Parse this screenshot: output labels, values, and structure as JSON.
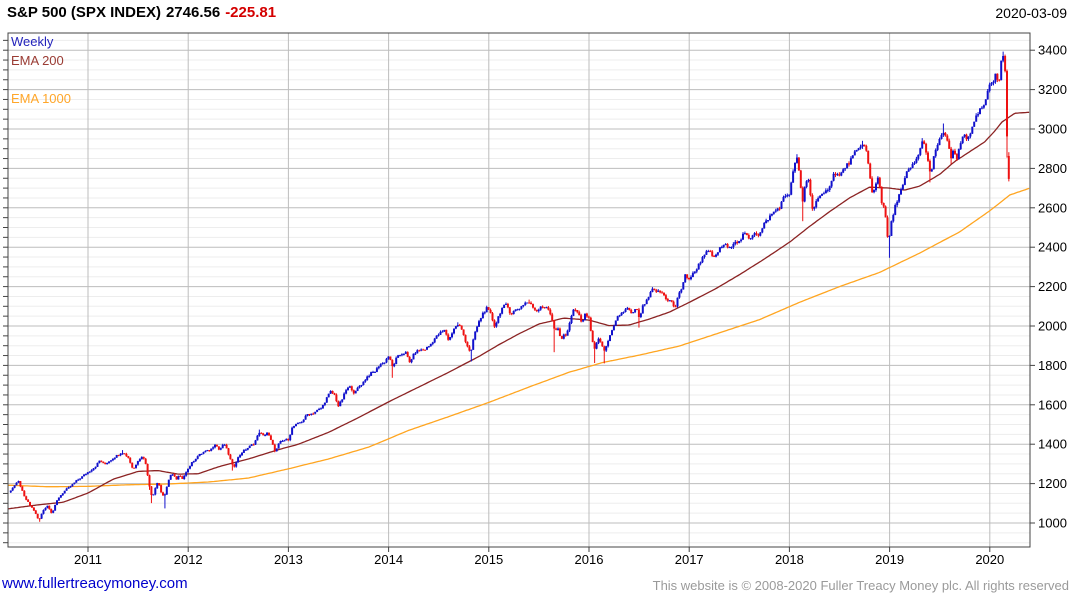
{
  "header": {
    "instrument": "S&P 500 (SPX INDEX)",
    "price": "2746.56",
    "change": "-225.81",
    "change_color": "#d40000",
    "date": "2020-03-09"
  },
  "legend": [
    {
      "label": "Weekly",
      "color": "#2323bb"
    },
    {
      "label": "EMA 200",
      "color": "#9a3b33"
    },
    {
      "label": "EMA 1000",
      "color": "#ffa629"
    }
  ],
  "footer": {
    "site": "www.fullertreacymoney.com",
    "site_color": "#0000cc",
    "copyright": "This website is © 2008-2020 Fuller Treacy Money plc. All rights reserved",
    "copyright_color": "#9a9a9a"
  },
  "chart_data": {
    "type": "candlestick",
    "timeframe": "Weekly",
    "instrument": "S&P 500 (SPX INDEX)",
    "last_price": 2746.56,
    "change": -225.81,
    "as_of": "2020-03-09",
    "x_ticks": [
      2011,
      2012,
      2013,
      2014,
      2015,
      2016,
      2017,
      2018,
      2019,
      2020
    ],
    "y_ticks": [
      1000,
      1200,
      1400,
      1600,
      1800,
      2000,
      2200,
      2400,
      2600,
      2800,
      3000,
      3200,
      3400
    ],
    "minor_step": 50,
    "xlim": [
      2010.2,
      2020.4
    ],
    "ylim": [
      878,
      3487
    ],
    "grid": true,
    "legend_position": "top-left",
    "colors": {
      "up": "#1010cc",
      "down": "#ee1111",
      "ema200": "#8b2323",
      "ema1000": "#ffa520",
      "grid_major": "#bdbdbd",
      "grid_minor": "#ededed",
      "frame": "#444444",
      "label": "#000000"
    },
    "price_path": [
      [
        2010.2,
        1150
      ],
      [
        2010.26,
        1187
      ],
      [
        2010.31,
        1212
      ],
      [
        2010.36,
        1136
      ],
      [
        2010.42,
        1090
      ],
      [
        2010.46,
        1065
      ],
      [
        2010.51,
        1011
      ],
      [
        2010.55,
        1065
      ],
      [
        2010.6,
        1090
      ],
      [
        2010.64,
        1047
      ],
      [
        2010.7,
        1125
      ],
      [
        2010.76,
        1160
      ],
      [
        2010.82,
        1183
      ],
      [
        2010.88,
        1212
      ],
      [
        2010.94,
        1235
      ],
      [
        2011.0,
        1258
      ],
      [
        2011.07,
        1285
      ],
      [
        2011.12,
        1320
      ],
      [
        2011.16,
        1296
      ],
      [
        2011.22,
        1318
      ],
      [
        2011.28,
        1340
      ],
      [
        2011.34,
        1360
      ],
      [
        2011.4,
        1335
      ],
      [
        2011.45,
        1270
      ],
      [
        2011.5,
        1320
      ],
      [
        2011.55,
        1340
      ],
      [
        2011.58,
        1290
      ],
      [
        2011.61,
        1199
      ],
      [
        2011.64,
        1123
      ],
      [
        2011.67,
        1178
      ],
      [
        2011.7,
        1216
      ],
      [
        2011.73,
        1155
      ],
      [
        2011.76,
        1131
      ],
      [
        2011.79,
        1190
      ],
      [
        2011.82,
        1238
      ],
      [
        2011.85,
        1253
      ],
      [
        2011.88,
        1216
      ],
      [
        2011.91,
        1244
      ],
      [
        2011.94,
        1219
      ],
      [
        2011.97,
        1255
      ],
      [
        2012.0,
        1277
      ],
      [
        2012.05,
        1315
      ],
      [
        2012.1,
        1342
      ],
      [
        2012.16,
        1361
      ],
      [
        2012.22,
        1370
      ],
      [
        2012.27,
        1403
      ],
      [
        2012.31,
        1370
      ],
      [
        2012.36,
        1403
      ],
      [
        2012.4,
        1353
      ],
      [
        2012.45,
        1278
      ],
      [
        2012.49,
        1325
      ],
      [
        2012.53,
        1356
      ],
      [
        2012.58,
        1376
      ],
      [
        2012.62,
        1391
      ],
      [
        2012.66,
        1406
      ],
      [
        2012.71,
        1461
      ],
      [
        2012.75,
        1441
      ],
      [
        2012.79,
        1460
      ],
      [
        2012.83,
        1414
      ],
      [
        2012.87,
        1360
      ],
      [
        2012.91,
        1409
      ],
      [
        2012.95,
        1418
      ],
      [
        2013.0,
        1426
      ],
      [
        2013.04,
        1486
      ],
      [
        2013.09,
        1503
      ],
      [
        2013.14,
        1518
      ],
      [
        2013.19,
        1552
      ],
      [
        2013.24,
        1556
      ],
      [
        2013.28,
        1569
      ],
      [
        2013.33,
        1583
      ],
      [
        2013.38,
        1633
      ],
      [
        2013.42,
        1667
      ],
      [
        2013.46,
        1650
      ],
      [
        2013.5,
        1592
      ],
      [
        2013.54,
        1632
      ],
      [
        2013.58,
        1680
      ],
      [
        2013.62,
        1692
      ],
      [
        2013.66,
        1656
      ],
      [
        2013.7,
        1692
      ],
      [
        2013.74,
        1710
      ],
      [
        2013.79,
        1745
      ],
      [
        2013.83,
        1762
      ],
      [
        2013.87,
        1771
      ],
      [
        2013.91,
        1805
      ],
      [
        2013.95,
        1812
      ],
      [
        2014.0,
        1848
      ],
      [
        2014.04,
        1790
      ],
      [
        2014.08,
        1839
      ],
      [
        2014.13,
        1859
      ],
      [
        2014.17,
        1865
      ],
      [
        2014.21,
        1815
      ],
      [
        2014.26,
        1864
      ],
      [
        2014.31,
        1878
      ],
      [
        2014.36,
        1881
      ],
      [
        2014.41,
        1901
      ],
      [
        2014.46,
        1936
      ],
      [
        2014.51,
        1963
      ],
      [
        2014.56,
        1978
      ],
      [
        2014.6,
        1925
      ],
      [
        2014.65,
        1987
      ],
      [
        2014.7,
        2011
      ],
      [
        2014.74,
        1968
      ],
      [
        2014.78,
        1906
      ],
      [
        2014.82,
        1862
      ],
      [
        2014.86,
        1965
      ],
      [
        2014.9,
        2018
      ],
      [
        2014.94,
        2064
      ],
      [
        2014.98,
        2089
      ],
      [
        2015.02,
        2058
      ],
      [
        2015.06,
        1995
      ],
      [
        2015.1,
        2055
      ],
      [
        2015.14,
        2097
      ],
      [
        2015.18,
        2108
      ],
      [
        2015.22,
        2060
      ],
      [
        2015.26,
        2080
      ],
      [
        2015.31,
        2092
      ],
      [
        2015.36,
        2118
      ],
      [
        2015.4,
        2120
      ],
      [
        2015.44,
        2095
      ],
      [
        2015.48,
        2077
      ],
      [
        2015.52,
        2102
      ],
      [
        2015.56,
        2095
      ],
      [
        2015.6,
        2080
      ],
      [
        2015.63,
        2040
      ],
      [
        2015.66,
        1971
      ],
      [
        2015.69,
        1989
      ],
      [
        2015.72,
        1921
      ],
      [
        2015.75,
        1958
      ],
      [
        2015.78,
        1951
      ],
      [
        2015.81,
        2033
      ],
      [
        2015.84,
        2075
      ],
      [
        2015.87,
        2089
      ],
      [
        2015.9,
        2052
      ],
      [
        2015.93,
        2012
      ],
      [
        2015.96,
        2060
      ],
      [
        2016.0,
        2044
      ],
      [
        2016.03,
        1922
      ],
      [
        2016.06,
        1880
      ],
      [
        2016.09,
        1940
      ],
      [
        2016.12,
        1918
      ],
      [
        2016.15,
        1865
      ],
      [
        2016.18,
        1918
      ],
      [
        2016.21,
        1948
      ],
      [
        2016.25,
        1999
      ],
      [
        2016.29,
        2050
      ],
      [
        2016.34,
        2072
      ],
      [
        2016.39,
        2091
      ],
      [
        2016.43,
        2052
      ],
      [
        2016.47,
        2099
      ],
      [
        2016.5,
        2037
      ],
      [
        2016.54,
        2103
      ],
      [
        2016.58,
        2129
      ],
      [
        2016.63,
        2184
      ],
      [
        2016.68,
        2175
      ],
      [
        2016.73,
        2169
      ],
      [
        2016.78,
        2133
      ],
      [
        2016.82,
        2126
      ],
      [
        2016.86,
        2085
      ],
      [
        2016.89,
        2164
      ],
      [
        2016.93,
        2192
      ],
      [
        2016.96,
        2258
      ],
      [
        2017.0,
        2239
      ],
      [
        2017.05,
        2271
      ],
      [
        2017.1,
        2316
      ],
      [
        2017.15,
        2367
      ],
      [
        2017.2,
        2378
      ],
      [
        2017.25,
        2344
      ],
      [
        2017.3,
        2389
      ],
      [
        2017.35,
        2416
      ],
      [
        2017.4,
        2391
      ],
      [
        2017.45,
        2432
      ],
      [
        2017.5,
        2425
      ],
      [
        2017.55,
        2472
      ],
      [
        2017.6,
        2441
      ],
      [
        2017.65,
        2477
      ],
      [
        2017.7,
        2461
      ],
      [
        2017.75,
        2519
      ],
      [
        2017.8,
        2553
      ],
      [
        2017.85,
        2581
      ],
      [
        2017.9,
        2602
      ],
      [
        2017.95,
        2658
      ],
      [
        2018.0,
        2673
      ],
      [
        2018.04,
        2786
      ],
      [
        2018.07,
        2872
      ],
      [
        2018.1,
        2762
      ],
      [
        2018.13,
        2620
      ],
      [
        2018.16,
        2732
      ],
      [
        2018.19,
        2747
      ],
      [
        2018.23,
        2588
      ],
      [
        2018.27,
        2640
      ],
      [
        2018.31,
        2656
      ],
      [
        2018.35,
        2670
      ],
      [
        2018.4,
        2713
      ],
      [
        2018.45,
        2780
      ],
      [
        2018.5,
        2760
      ],
      [
        2018.55,
        2802
      ],
      [
        2018.6,
        2833
      ],
      [
        2018.65,
        2875
      ],
      [
        2018.7,
        2902
      ],
      [
        2018.73,
        2930
      ],
      [
        2018.77,
        2886
      ],
      [
        2018.8,
        2768
      ],
      [
        2018.83,
        2659
      ],
      [
        2018.86,
        2723
      ],
      [
        2018.89,
        2760
      ],
      [
        2018.92,
        2633
      ],
      [
        2018.95,
        2600
      ],
      [
        2018.97,
        2486
      ],
      [
        2018.99,
        2417
      ],
      [
        2019.01,
        2507
      ],
      [
        2019.05,
        2596
      ],
      [
        2019.09,
        2665
      ],
      [
        2019.13,
        2707
      ],
      [
        2019.17,
        2776
      ],
      [
        2019.21,
        2803
      ],
      [
        2019.26,
        2834
      ],
      [
        2019.3,
        2893
      ],
      [
        2019.33,
        2940
      ],
      [
        2019.37,
        2881
      ],
      [
        2019.41,
        2752
      ],
      [
        2019.45,
        2887
      ],
      [
        2019.5,
        2942
      ],
      [
        2019.54,
        2990
      ],
      [
        2019.58,
        2932
      ],
      [
        2019.61,
        2847
      ],
      [
        2019.64,
        2889
      ],
      [
        2019.67,
        2847
      ],
      [
        2019.71,
        2926
      ],
      [
        2019.74,
        2979
      ],
      [
        2019.77,
        2952
      ],
      [
        2019.81,
        2986
      ],
      [
        2019.84,
        3023
      ],
      [
        2019.87,
        3067
      ],
      [
        2019.9,
        3094
      ],
      [
        2019.93,
        3110
      ],
      [
        2019.96,
        3141
      ],
      [
        2020.0,
        3231
      ],
      [
        2020.03,
        3235
      ],
      [
        2020.06,
        3295
      ],
      [
        2020.09,
        3226
      ],
      [
        2020.11,
        3328
      ],
      [
        2020.13,
        3380
      ],
      [
        2020.15,
        3338
      ],
      [
        2020.17,
        2954
      ],
      [
        2020.18,
        2972
      ],
      [
        2020.19,
        2747
      ]
    ],
    "spike_lows": [
      [
        2010.51,
        1006
      ],
      [
        2011.61,
        1168
      ],
      [
        2011.64,
        1101
      ],
      [
        2011.76,
        1074
      ],
      [
        2012.45,
        1266
      ],
      [
        2014.04,
        1737
      ],
      [
        2014.82,
        1820
      ],
      [
        2015.66,
        1867
      ],
      [
        2016.06,
        1812
      ],
      [
        2016.15,
        1810
      ],
      [
        2016.5,
        1992
      ],
      [
        2018.13,
        2532
      ],
      [
        2018.23,
        2585
      ],
      [
        2018.99,
        2346
      ],
      [
        2019.41,
        2729
      ],
      [
        2019.61,
        2822
      ],
      [
        2020.17,
        2855
      ]
    ],
    "spike_highs": [
      [
        2011.34,
        1370
      ],
      [
        2012.71,
        1474
      ],
      [
        2014.7,
        2019
      ],
      [
        2015.4,
        2134
      ],
      [
        2018.07,
        2872
      ],
      [
        2018.73,
        2940
      ],
      [
        2019.33,
        2954
      ],
      [
        2019.54,
        3028
      ],
      [
        2020.13,
        3393
      ]
    ],
    "final_candle": {
      "t": 2020.19,
      "open": 2863,
      "high": 2882,
      "low": 2734,
      "close": 2746.56
    },
    "ema200": [
      [
        2010.2,
        1072
      ],
      [
        2010.5,
        1092
      ],
      [
        2010.75,
        1105
      ],
      [
        2011.0,
        1152
      ],
      [
        2011.25,
        1222
      ],
      [
        2011.5,
        1262
      ],
      [
        2011.7,
        1266
      ],
      [
        2011.9,
        1248
      ],
      [
        2012.1,
        1250
      ],
      [
        2012.3,
        1285
      ],
      [
        2012.6,
        1325
      ],
      [
        2012.9,
        1372
      ],
      [
        2013.1,
        1400
      ],
      [
        2013.4,
        1460
      ],
      [
        2013.7,
        1535
      ],
      [
        2014.0,
        1615
      ],
      [
        2014.3,
        1690
      ],
      [
        2014.6,
        1765
      ],
      [
        2014.9,
        1845
      ],
      [
        2015.1,
        1905
      ],
      [
        2015.3,
        1960
      ],
      [
        2015.5,
        2010
      ],
      [
        2015.75,
        2040
      ],
      [
        2016.0,
        2030
      ],
      [
        2016.2,
        2002
      ],
      [
        2016.4,
        2005
      ],
      [
        2016.6,
        2035
      ],
      [
        2016.8,
        2070
      ],
      [
        2017.0,
        2120
      ],
      [
        2017.25,
        2185
      ],
      [
        2017.5,
        2260
      ],
      [
        2017.75,
        2340
      ],
      [
        2018.0,
        2425
      ],
      [
        2018.2,
        2505
      ],
      [
        2018.4,
        2580
      ],
      [
        2018.6,
        2650
      ],
      [
        2018.8,
        2705
      ],
      [
        2019.0,
        2700
      ],
      [
        2019.15,
        2690
      ],
      [
        2019.3,
        2710
      ],
      [
        2019.5,
        2770
      ],
      [
        2019.65,
        2835
      ],
      [
        2019.8,
        2885
      ],
      [
        2019.95,
        2935
      ],
      [
        2020.05,
        2990
      ],
      [
        2020.12,
        3035
      ],
      [
        2020.25,
        3080
      ],
      [
        2020.4,
        3085
      ]
    ],
    "ema1000": [
      [
        2010.2,
        1192
      ],
      [
        2010.6,
        1184
      ],
      [
        2011.0,
        1186
      ],
      [
        2011.4,
        1194
      ],
      [
        2011.8,
        1198
      ],
      [
        2012.2,
        1208
      ],
      [
        2012.6,
        1228
      ],
      [
        2013.0,
        1275
      ],
      [
        2013.4,
        1325
      ],
      [
        2013.8,
        1385
      ],
      [
        2014.2,
        1470
      ],
      [
        2014.6,
        1540
      ],
      [
        2015.0,
        1612
      ],
      [
        2015.4,
        1690
      ],
      [
        2015.8,
        1765
      ],
      [
        2016.14,
        1815
      ],
      [
        2016.5,
        1852
      ],
      [
        2016.9,
        1898
      ],
      [
        2017.3,
        1965
      ],
      [
        2017.7,
        2032
      ],
      [
        2018.1,
        2120
      ],
      [
        2018.5,
        2200
      ],
      [
        2018.9,
        2272
      ],
      [
        2019.3,
        2370
      ],
      [
        2019.7,
        2478
      ],
      [
        2020.0,
        2585
      ],
      [
        2020.2,
        2665
      ],
      [
        2020.4,
        2700
      ]
    ]
  }
}
